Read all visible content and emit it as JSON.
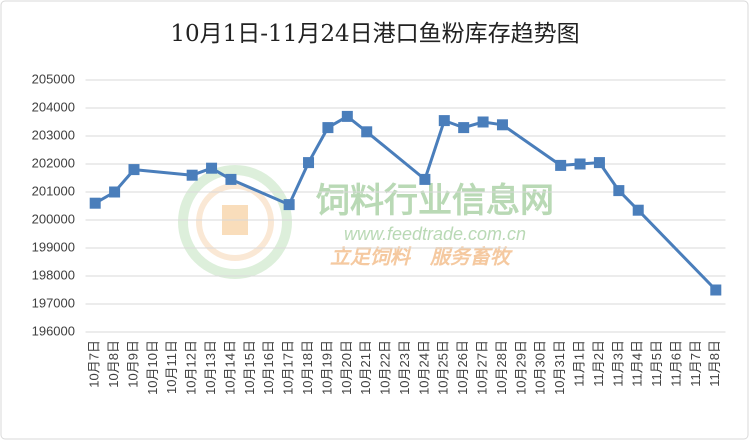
{
  "chart_data": {
    "type": "line",
    "title": "10月1日-11月24日港口鱼粉库存趋势图",
    "categories": [
      "10月7日",
      "10月8日",
      "10月9日",
      "10月10日",
      "10月11日",
      "10月12日",
      "10月13日",
      "10月14日",
      "10月15日",
      "10月16日",
      "10月17日",
      "10月18日",
      "10月19日",
      "10月20日",
      "10月21日",
      "10月22日",
      "10月23日",
      "10月24日",
      "10月25日",
      "10月26日",
      "10月27日",
      "10月28日",
      "10月29日",
      "10月30日",
      "10月31日",
      "11月1日",
      "11月2日",
      "11月3日",
      "11月4日",
      "11月5日",
      "11月6日",
      "11月7日",
      "11月8日"
    ],
    "values": [
      200600,
      201000,
      201800,
      null,
      null,
      201600,
      201850,
      201450,
      null,
      null,
      200550,
      202050,
      203300,
      203700,
      203150,
      null,
      null,
      201450,
      203550,
      203300,
      203500,
      203400,
      null,
      null,
      201950,
      202000,
      202050,
      201050,
      200350,
      null,
      null,
      null,
      197500
    ],
    "color": "#4a7ebb",
    "connect_nulls": true,
    "ylim": [
      196000,
      205000
    ],
    "yticks": [
      196000,
      197000,
      198000,
      199000,
      200000,
      201000,
      202000,
      203000,
      204000,
      205000
    ],
    "grid": true,
    "watermark": {
      "name": "饲料行业信息网",
      "url": "www.feedtrade.com.cn",
      "slogan": "立足饲料　服务畜牧"
    }
  }
}
